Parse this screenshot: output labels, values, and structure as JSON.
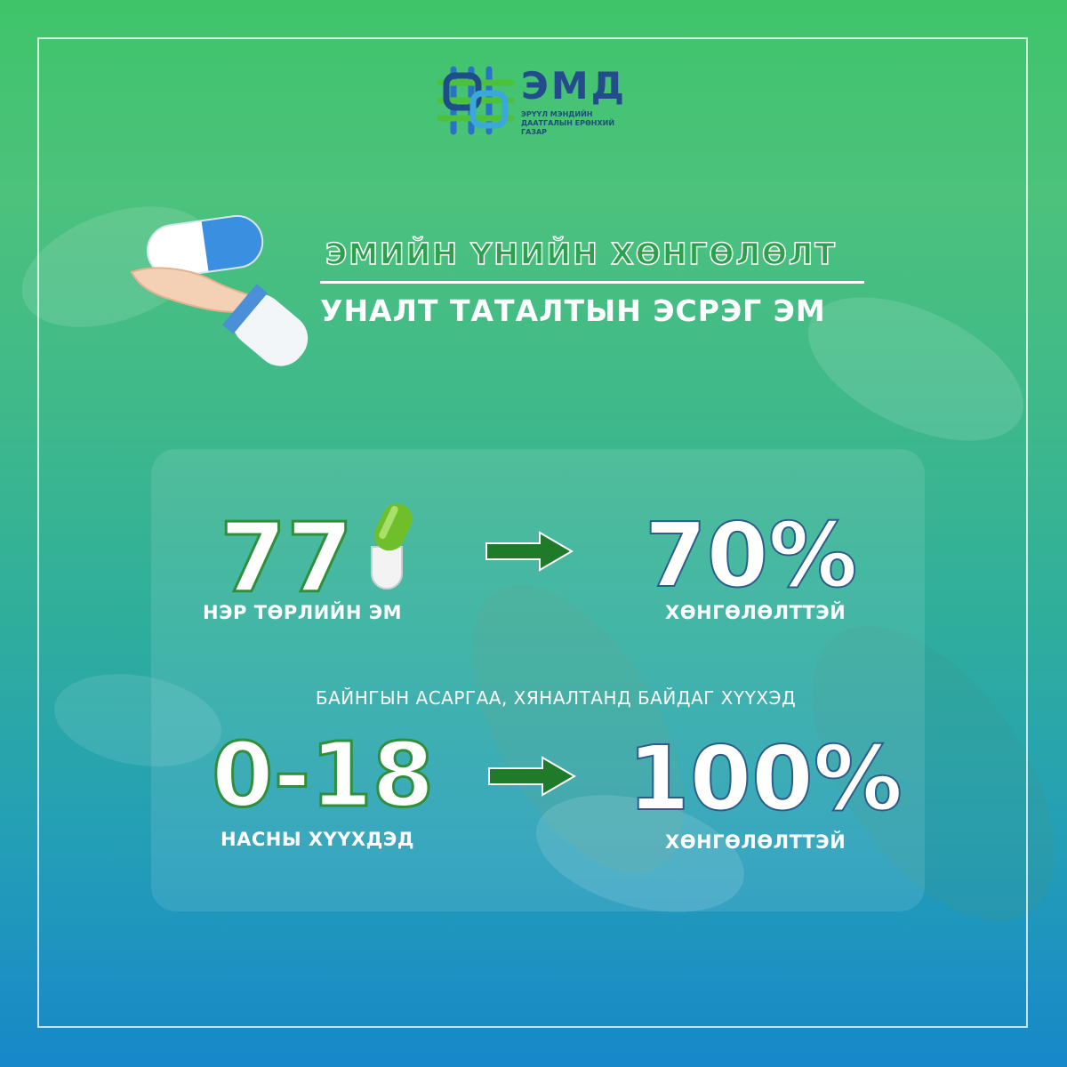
{
  "logo": {
    "brand": "ЭМД",
    "subtitle": "ЭРҮҮЛ МЭНДИЙН ДААТГАЛЫН ЕРӨНХИЙ ГАЗАР",
    "icon": "emd-knot-logo",
    "colors": {
      "blue": "#244c8c",
      "green": "#4cc13a"
    }
  },
  "header": {
    "title_line1": "ЭМИЙН ҮНИЙН ХӨНГӨЛӨЛТ",
    "title_line2": "УНАЛТ ТАТАЛТЫН ЭСРЭГ ЭМ",
    "illustration": "hand-holding-capsule-icon"
  },
  "stats": [
    {
      "value": "77",
      "label": "НЭР ТӨРЛИЙН ЭМ",
      "icon": "green-capsule-icon",
      "result": "70%",
      "result_label": "ХӨНГӨЛӨЛТТЭЙ"
    },
    {
      "value": "0-18",
      "label": "НАСНЫ ХҮҮХДЭД",
      "result": "100%",
      "result_label": "ХӨНГӨЛӨЛТТЭЙ"
    }
  ],
  "note": "БАЙНГЫН АСАРГАА, ХЯНАЛТАНД БАЙДАГ ХҮҮХЭД",
  "colors": {
    "arrow": "#1f7a2a",
    "accent_green": "#2aa14c"
  }
}
